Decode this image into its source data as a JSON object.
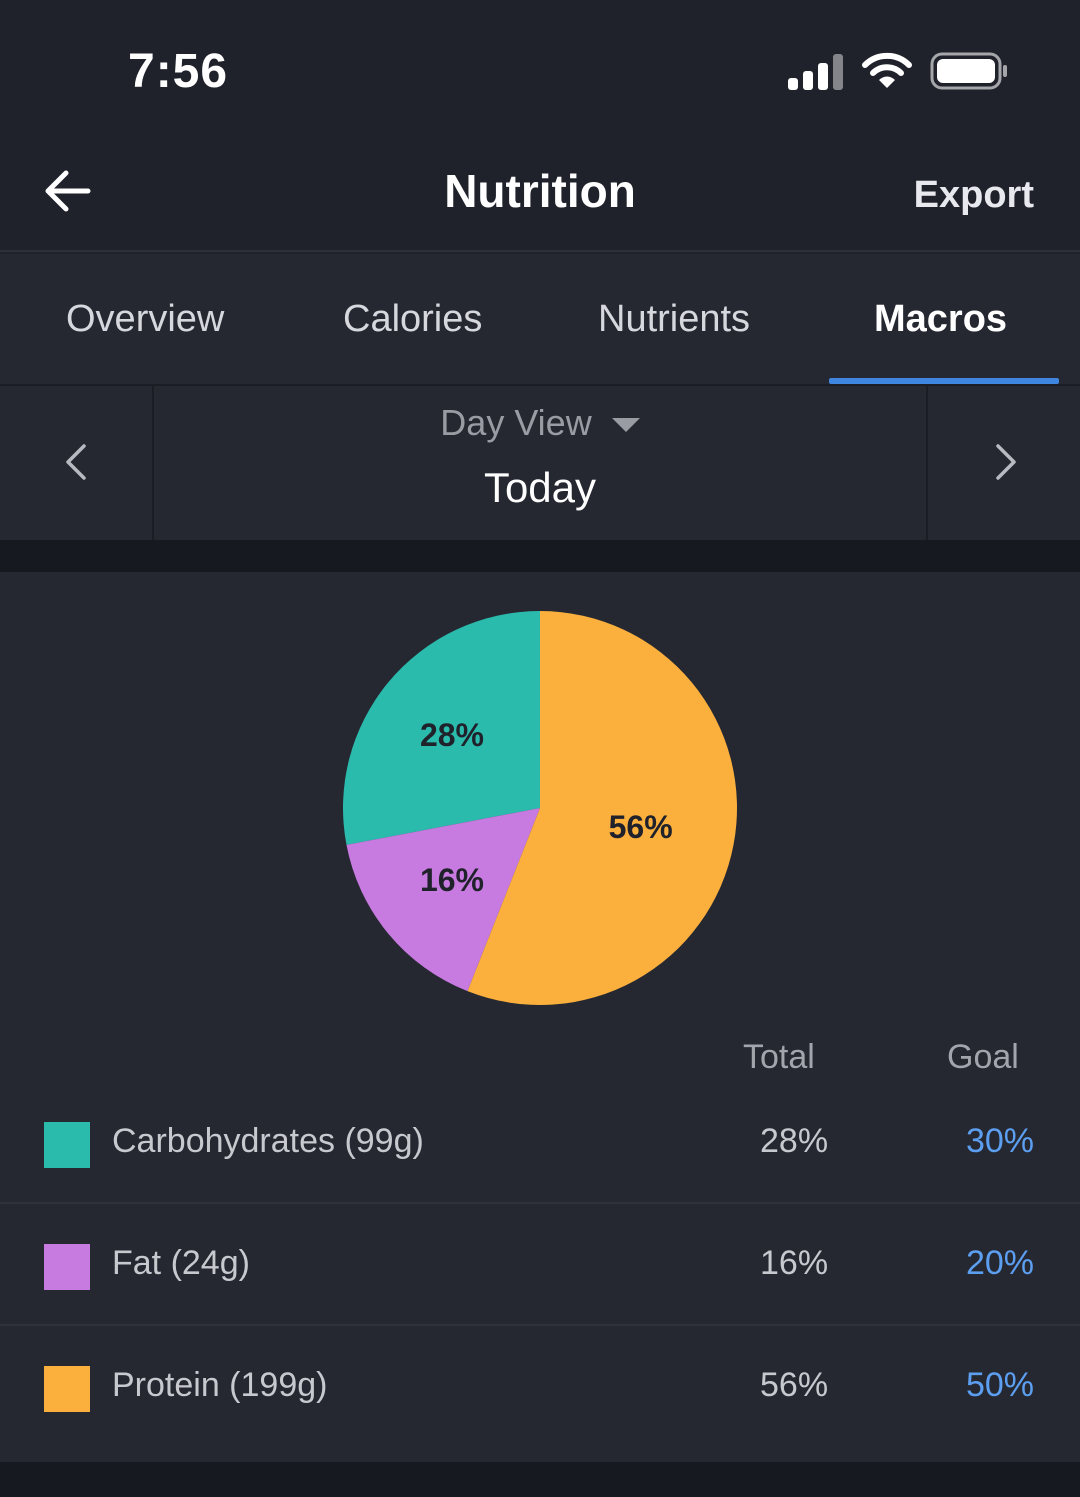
{
  "status_bar": {
    "time": "7:56",
    "signal_icon": "cellular-signal-icon",
    "wifi_icon": "wifi-icon",
    "battery_icon": "battery-icon"
  },
  "nav": {
    "back_icon": "arrow-left-icon",
    "title": "Nutrition",
    "export_label": "Export"
  },
  "tabs": [
    {
      "label": "Overview",
      "active": false
    },
    {
      "label": "Calories",
      "active": false
    },
    {
      "label": "Nutrients",
      "active": false
    },
    {
      "label": "Macros",
      "active": true
    }
  ],
  "date_nav": {
    "view_label": "Day View",
    "date_label": "Today",
    "prev_icon": "chevron-left-icon",
    "next_icon": "chevron-right-icon"
  },
  "chart_data": {
    "type": "pie",
    "slices": [
      {
        "label": "Carbohydrates",
        "value": 28,
        "display": "28%",
        "color": "#2bbbad"
      },
      {
        "label": "Fat",
        "value": 16,
        "display": "16%",
        "color": "#c77ae0"
      },
      {
        "label": "Protein",
        "value": 56,
        "display": "56%",
        "color": "#fbaf3d"
      }
    ]
  },
  "table": {
    "total_header": "Total",
    "goal_header": "Goal",
    "rows": [
      {
        "name": "Carbohydrates (99g)",
        "total": "28%",
        "goal": "30%",
        "color": "#2bbbad"
      },
      {
        "name": "Fat (24g)",
        "total": "16%",
        "goal": "20%",
        "color": "#c77ae0"
      },
      {
        "name": "Protein (199g)",
        "total": "56%",
        "goal": "50%",
        "color": "#fbaf3d"
      }
    ]
  },
  "colors": {
    "accent": "#3f86e0",
    "goal_text": "#5c9ef0",
    "background": "#1f212b",
    "card": "#252831"
  }
}
